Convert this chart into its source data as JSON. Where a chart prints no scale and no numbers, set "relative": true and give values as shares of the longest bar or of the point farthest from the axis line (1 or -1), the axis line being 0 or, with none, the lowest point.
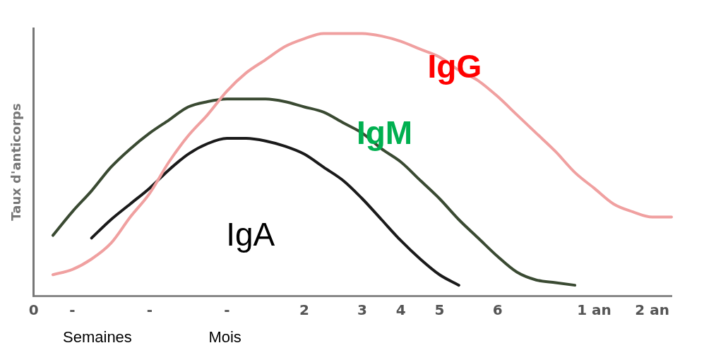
{
  "chart_data": {
    "type": "line",
    "relative": true,
    "ylabel": "Taux d'anticorps",
    "grid": false,
    "legend": false,
    "marker": "none",
    "line_style": "solid",
    "categories": [
      "0",
      null,
      "-",
      null,
      null,
      null,
      "-",
      null,
      null,
      null,
      "-",
      null,
      null,
      null,
      "2",
      null,
      null,
      "3",
      null,
      "4",
      null,
      "5",
      null,
      null,
      "6",
      null,
      null,
      null,
      null,
      "1 an",
      null,
      null,
      "2 an",
      null
    ],
    "series": [
      {
        "name": "IgG",
        "color": "#f0a0a0",
        "values": [
          null,
          0.08,
          0.1,
          0.14,
          0.2,
          0.3,
          0.39,
          0.51,
          0.61,
          0.69,
          0.78,
          0.85,
          0.9,
          0.95,
          0.98,
          1,
          1,
          1,
          0.99,
          0.97,
          0.94,
          0.91,
          0.86,
          0.82,
          0.76,
          0.69,
          0.62,
          0.55,
          0.47,
          0.41,
          0.35,
          0.32,
          0.3,
          0.3
        ]
      },
      {
        "name": "IgM",
        "color": "#3a4a32",
        "values": [
          null,
          0.23,
          0.32,
          0.4,
          0.49,
          0.56,
          0.62,
          0.67,
          0.72,
          0.74,
          0.75,
          0.75,
          0.75,
          0.74,
          0.72,
          0.7,
          0.66,
          0.62,
          0.56,
          0.51,
          0.44,
          0.37,
          0.29,
          0.22,
          0.15,
          0.09,
          0.06,
          0.05,
          0.04,
          null,
          null,
          null,
          null,
          null
        ]
      },
      {
        "name": "IgA",
        "color": "#1a1a1a",
        "values": [
          null,
          null,
          null,
          0.22,
          0.29,
          0.35,
          0.41,
          0.48,
          0.54,
          0.58,
          0.6,
          0.6,
          0.59,
          0.57,
          0.54,
          0.49,
          0.44,
          0.37,
          0.29,
          0.21,
          0.14,
          0.08,
          0.04,
          null,
          null,
          null,
          null,
          null,
          null,
          null,
          null,
          null,
          null,
          null
        ]
      }
    ],
    "annotations": [
      "Semaines",
      "Mois"
    ]
  }
}
